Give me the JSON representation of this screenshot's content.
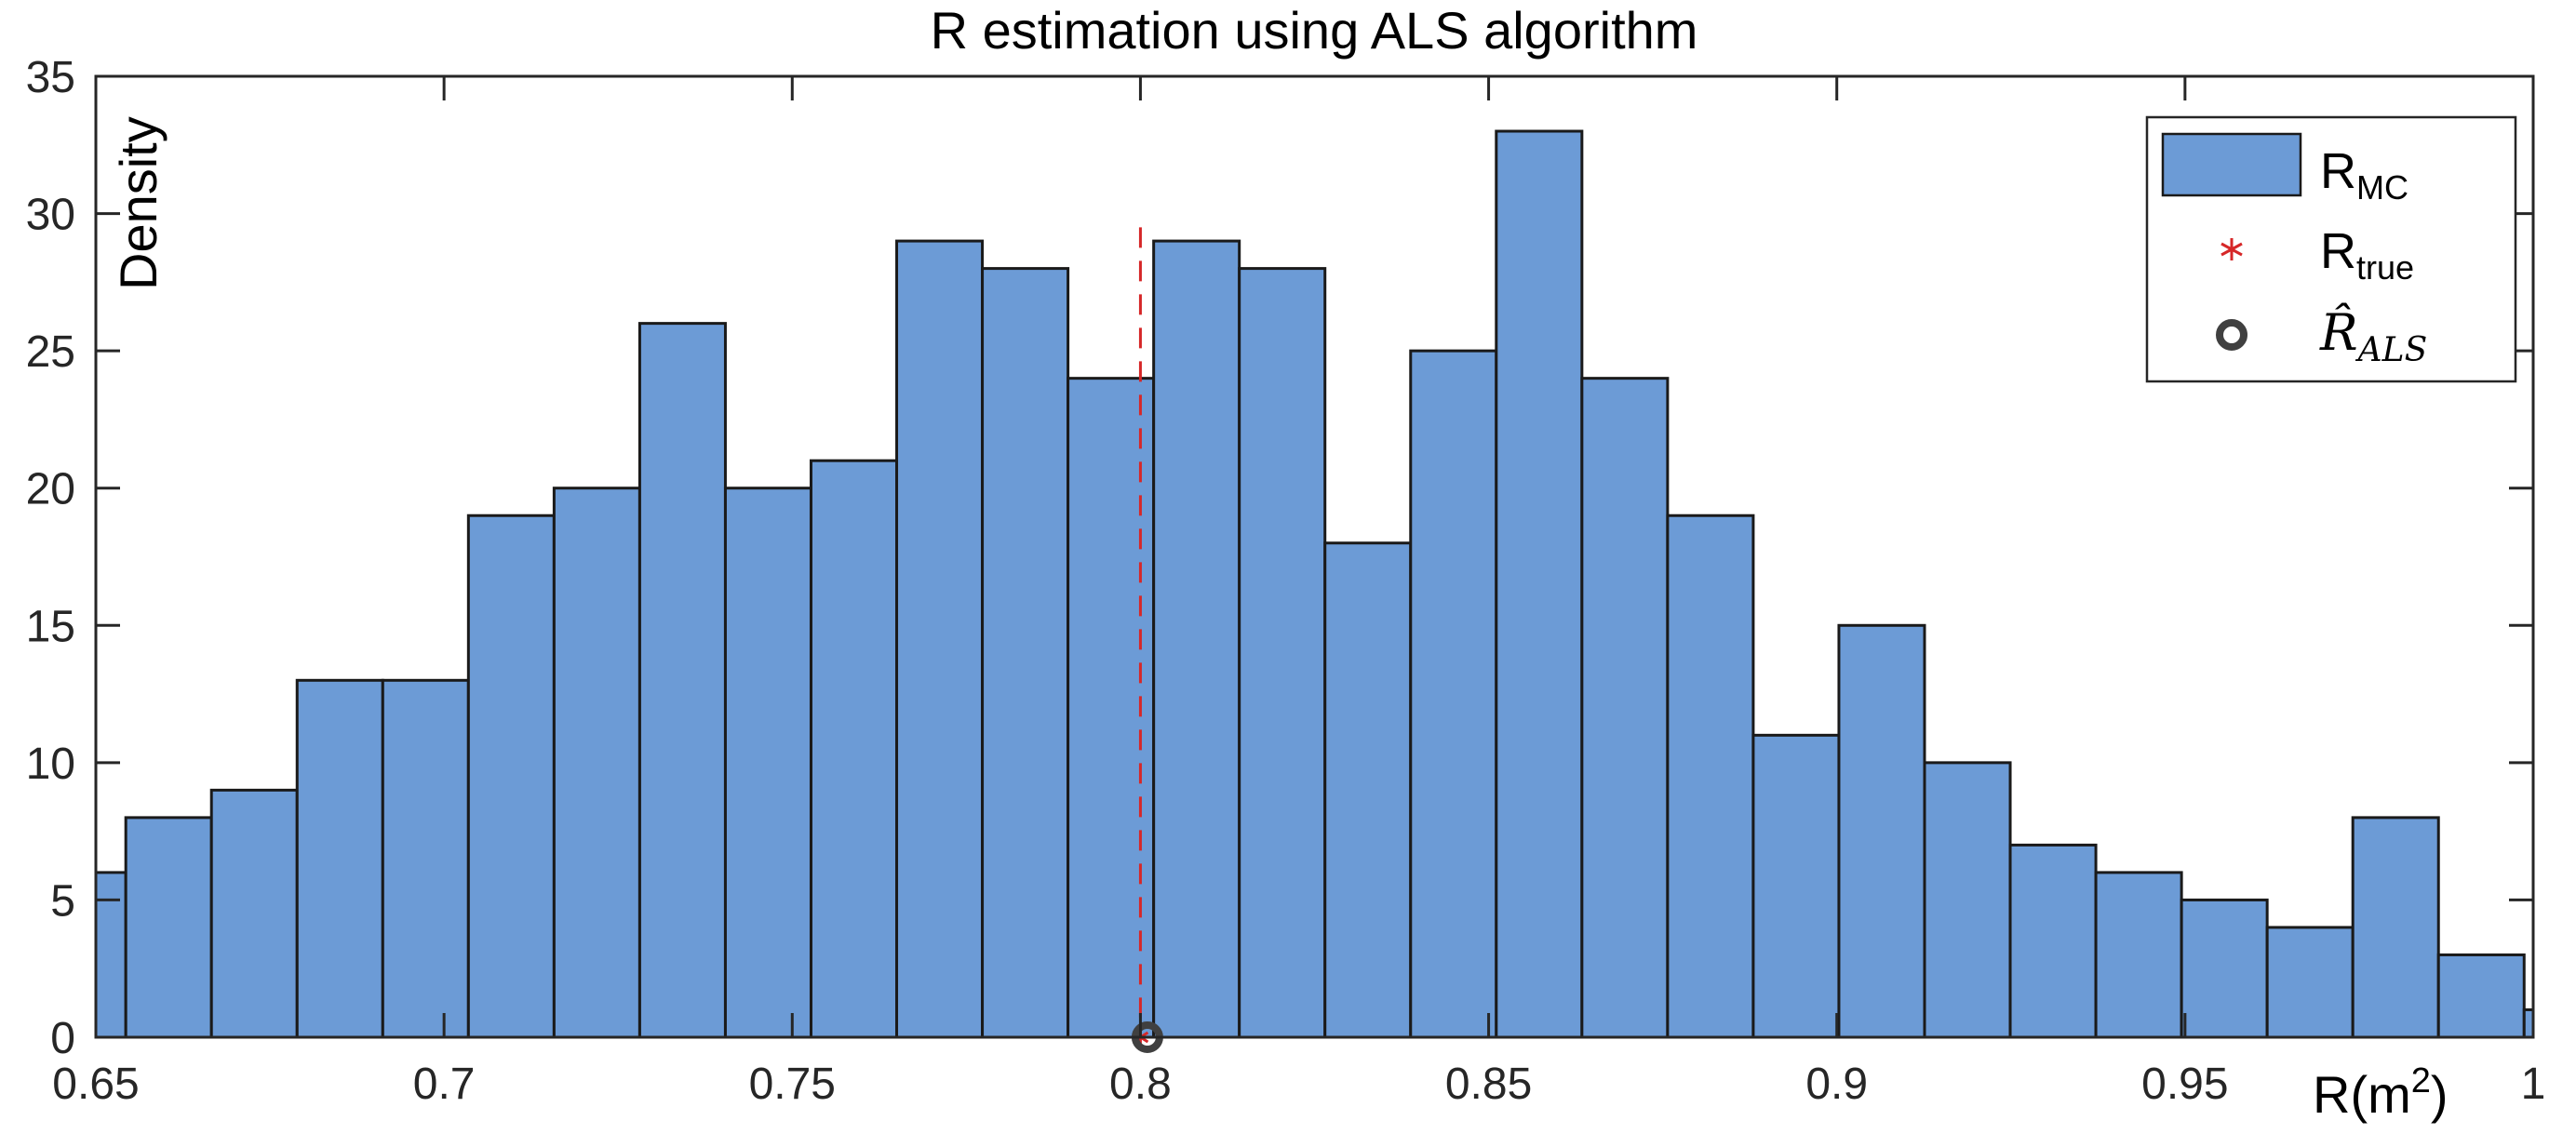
{
  "chart_data": {
    "type": "histogram",
    "title": "R estimation using ALS algorithm",
    "ylabel": "Density",
    "xlabel": {
      "main": "R(m",
      "superscript": "2",
      "close": ")"
    },
    "xlim": [
      0.65,
      1.0
    ],
    "ylim": [
      0,
      35
    ],
    "xticks": [
      0.65,
      0.7,
      0.75,
      0.8,
      0.85,
      0.9,
      0.95,
      1
    ],
    "xtick_labels": [
      "0.65",
      "0.7",
      "0.75",
      "0.8",
      "0.85",
      "0.9",
      "0.95",
      "1"
    ],
    "yticks": [
      0,
      5,
      10,
      15,
      20,
      25,
      30,
      35
    ],
    "ytick_labels": [
      "0",
      "5",
      "10",
      "15",
      "20",
      "25",
      "30",
      "35"
    ],
    "bin_edges": [
      0.642,
      0.6543,
      0.6666,
      0.6789,
      0.6912,
      0.7035,
      0.7158,
      0.7281,
      0.7404,
      0.7527,
      0.765,
      0.7773,
      0.7896,
      0.8019,
      0.8142,
      0.8265,
      0.8388,
      0.8511,
      0.8634,
      0.8757,
      0.888,
      0.9003,
      0.9126,
      0.9249,
      0.9372,
      0.9495,
      0.9618,
      0.9741,
      0.9864,
      0.9987,
      1.011
    ],
    "values": [
      6,
      8,
      9,
      13,
      13,
      19,
      20,
      26,
      20,
      21,
      29,
      28,
      24,
      29,
      28,
      18,
      25,
      33,
      24,
      19,
      11,
      15,
      10,
      7,
      6,
      5,
      4,
      8,
      3,
      1
    ],
    "r_true": 0.8,
    "r_als": 0.801,
    "legend": {
      "position": "top-right",
      "entries": [
        {
          "label": "R",
          "sub": "MC",
          "marker": "bar"
        },
        {
          "label": "R",
          "sub": "true",
          "marker": "asterisk"
        },
        {
          "label": "R̂",
          "sub": "ALS",
          "marker": "circle"
        }
      ]
    },
    "colors": {
      "bar_fill": "#6c9bd6",
      "bar_edge": "#1a1a1a",
      "true_line": "#d62728",
      "als_marker": "#404040",
      "axis": "#262626"
    }
  }
}
